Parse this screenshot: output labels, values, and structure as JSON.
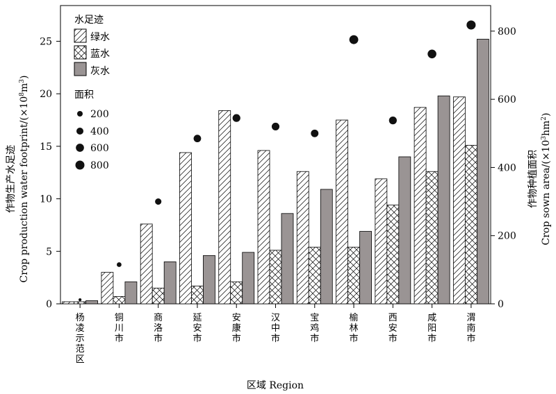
{
  "chart_data": {
    "type": "bar",
    "categories": [
      "杨凌示范区",
      "铜川市",
      "商洛市",
      "延安市",
      "安康市",
      "汉中市",
      "宝鸡市",
      "榆林市",
      "西安市",
      "咸阳市",
      "渭南市"
    ],
    "series": [
      {
        "name": "绿水",
        "values": [
          0.2,
          3.0,
          7.6,
          14.4,
          18.4,
          14.6,
          12.6,
          17.5,
          11.9,
          18.7,
          19.7
        ],
        "pattern": "diagonal-hatch"
      },
      {
        "name": "蓝水",
        "values": [
          0.2,
          0.7,
          1.5,
          1.7,
          2.1,
          5.1,
          5.4,
          5.4,
          9.4,
          12.6,
          15.1
        ],
        "pattern": "cross-hatch"
      },
      {
        "name": "灰水",
        "values": [
          0.3,
          2.1,
          4.0,
          4.6,
          4.9,
          8.6,
          10.9,
          6.9,
          14.0,
          19.8,
          25.2
        ],
        "pattern": "solid",
        "color": "#9a9494"
      }
    ],
    "area": {
      "name": "面积",
      "values": [
        12,
        115,
        300,
        485,
        545,
        520,
        500,
        775,
        538,
        733,
        818
      ],
      "legend_sizes": [
        200,
        400,
        600,
        800
      ],
      "legend_labels": [
        "200",
        "400",
        "600",
        "800"
      ]
    },
    "xlabel": "区域 Region",
    "ylabel_cn": "作物生产水足迹",
    "ylabel_en": "Crop production water footprint/(×10",
    "ylabel_en_sup": "8",
    "ylabel_en_mid": "m",
    "ylabel_en_sup2": "3",
    "ylabel_en_end": ")",
    "y2label_cn": "作物种植面积",
    "y2label_en": "Crop sown area/(×10",
    "y2label_en_sup": "3",
    "y2label_en_mid": "hm",
    "y2label_en_sup2": "2",
    "y2label_en_end": ")",
    "legend_title": "水足迹",
    "yticks": [
      0,
      5,
      10,
      15,
      20,
      25
    ],
    "yticks_labels": [
      "0",
      "5",
      "10",
      "15",
      "20",
      "25"
    ],
    "ylim": [
      0,
      28.4
    ],
    "y2ticks": [
      0,
      200,
      400,
      600,
      800
    ],
    "y2ticks_labels": [
      "0",
      "200",
      "400",
      "600",
      "800"
    ],
    "y2lim": [
      0,
      875
    ],
    "legend_position": "top-left",
    "grid": false
  }
}
